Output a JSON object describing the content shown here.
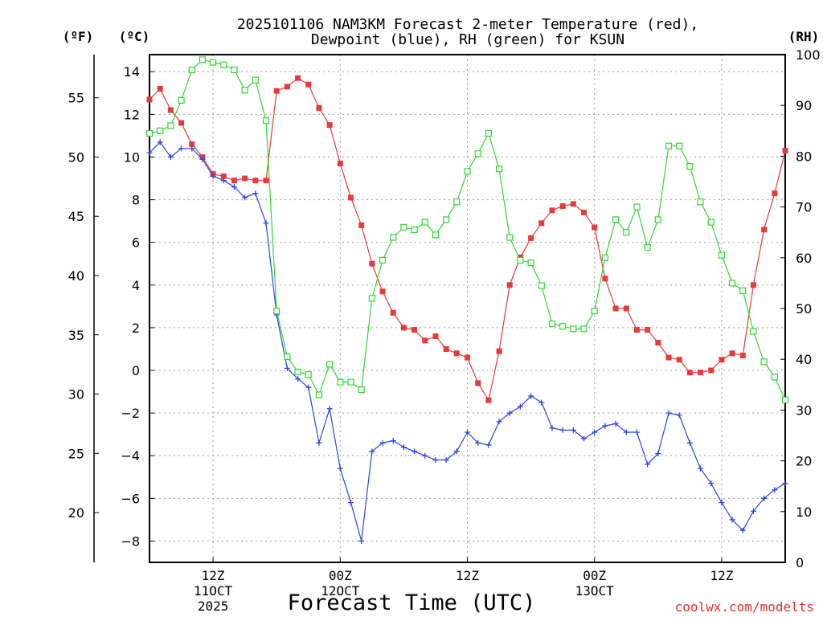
{
  "chart_data": {
    "type": "line",
    "title": "2025101106 NAM3KM Forecast 2-meter Temperature (red),",
    "subtitle": "Dewpoint (blue), RH (green) for KSUN",
    "xlabel": "Forecast Time (UTC)",
    "credit": "coolwx.com/modelts",
    "units": {
      "fahrenheit": "(ºF)",
      "celsius": "(ºC)",
      "rh": "(RH)"
    },
    "x_ticks": [
      {
        "hour": 6,
        "label": "12Z",
        "date": "11OCT",
        "year": "2025"
      },
      {
        "hour": 18,
        "label": "00Z",
        "date": "12OCT",
        "year": ""
      },
      {
        "hour": 30,
        "label": "12Z",
        "date": "",
        "year": ""
      },
      {
        "hour": 42,
        "label": "00Z",
        "date": "13OCT",
        "year": ""
      },
      {
        "hour": 54,
        "label": "12Z",
        "date": "",
        "year": ""
      }
    ],
    "x_range": [
      0,
      60
    ],
    "celsius_ticks": [
      "14",
      "12",
      "10",
      "8",
      "6",
      "4",
      "2",
      "0",
      "−2",
      "−4",
      "−6",
      "−8"
    ],
    "celsius_range": [
      -9.0,
      14.8
    ],
    "fahrenheit_ticks": [
      "55",
      "50",
      "45",
      "40",
      "35",
      "30",
      "25",
      "20"
    ],
    "rh_ticks": [
      "100",
      "90",
      "80",
      "70",
      "60",
      "50",
      "40",
      "30",
      "20",
      "10",
      "0"
    ],
    "rh_range": [
      0,
      100
    ],
    "series": [
      {
        "name": "Temperature",
        "unit": "C",
        "color": "#e83a3a",
        "marker": "filled-square",
        "values": [
          12.7,
          13.2,
          12.2,
          11.6,
          10.6,
          10.0,
          9.2,
          9.1,
          8.9,
          9.0,
          8.9,
          8.9,
          13.1,
          13.3,
          13.7,
          13.4,
          12.3,
          11.5,
          9.7,
          8.1,
          6.8,
          5.0,
          3.7,
          2.7,
          2.0,
          1.9,
          1.4,
          1.6,
          1.0,
          0.8,
          0.6,
          -0.6,
          -1.4,
          0.9,
          4.0,
          5.3,
          6.2,
          6.9,
          7.5,
          7.7,
          7.8,
          7.4,
          6.7,
          4.3,
          2.9,
          2.9,
          1.9,
          1.9,
          1.3,
          0.6,
          0.5,
          -0.1,
          -0.1,
          0.0,
          0.5,
          0.8,
          0.7,
          4.0,
          6.6,
          8.3,
          10.3
        ]
      },
      {
        "name": "Dewpoint",
        "unit": "C",
        "color": "#2b45e6",
        "marker": "plus",
        "values": [
          10.2,
          10.7,
          10.0,
          10.4,
          10.4,
          9.9,
          9.1,
          8.9,
          8.6,
          8.1,
          8.3,
          6.9,
          2.6,
          0.1,
          -0.4,
          -0.8,
          -3.4,
          -1.8,
          -4.6,
          -6.2,
          -8.0,
          -3.8,
          -3.4,
          -3.3,
          -3.6,
          -3.8,
          -4.0,
          -4.2,
          -4.2,
          -3.8,
          -2.9,
          -3.4,
          -3.5,
          -2.4,
          -2.0,
          -1.7,
          -1.2,
          -1.5,
          -2.7,
          -2.8,
          -2.8,
          -3.2,
          -2.9,
          -2.6,
          -2.5,
          -2.9,
          -2.9,
          -4.4,
          -3.9,
          -2.0,
          -2.1,
          -3.4,
          -4.6,
          -5.3,
          -6.2,
          -7.0,
          -7.5,
          -6.6,
          -6.0,
          -5.6,
          -5.3
        ]
      },
      {
        "name": "RH",
        "unit": "%",
        "color": "#33d633",
        "marker": "open-square",
        "values": [
          84.5,
          85,
          86,
          91,
          97,
          99,
          98.5,
          98,
          97,
          93,
          95,
          87,
          49.5,
          40.5,
          37.5,
          37,
          33,
          39,
          35.5,
          35.5,
          34,
          52,
          59.5,
          64,
          66,
          65.5,
          67,
          64.5,
          67.5,
          71,
          77,
          80.5,
          84.5,
          77.5,
          64,
          59.5,
          59,
          54.5,
          47,
          46.5,
          46,
          46,
          49.5,
          60,
          67.5,
          65,
          70,
          62,
          67.5,
          82,
          82,
          78,
          71,
          67,
          60.5,
          55,
          53.5,
          45.5,
          39.5,
          36.5,
          32
        ]
      }
    ]
  }
}
